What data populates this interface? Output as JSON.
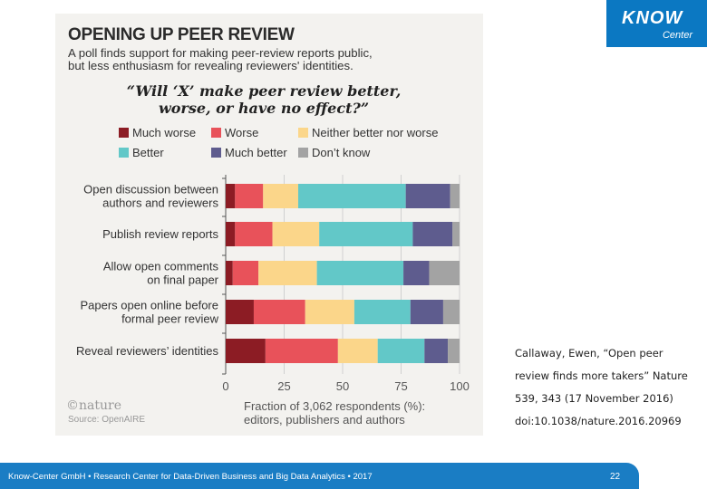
{
  "figure": {
    "title": "OPENING UP PEER REVIEW",
    "subtitle_line1": "A poll finds support for making peer-review reports public,",
    "subtitle_line2": "but less enthusiasm for revealing reviewers' identities.",
    "question_line1": "“Will ‘X’ make peer review better,",
    "question_line2": "worse, or have no effect?”",
    "watermark": "©nature",
    "source": "Source: OpenAIRE"
  },
  "chart_data": {
    "type": "bar",
    "orientation": "horizontal",
    "stacked": true,
    "categories": [
      [
        "Open discussion between",
        "authors and reviewers"
      ],
      [
        "Publish review reports"
      ],
      [
        "Allow open comments",
        "on final paper"
      ],
      [
        "Papers open online before",
        "formal peer review"
      ],
      [
        "Reveal reviewers’ identities"
      ]
    ],
    "series": [
      {
        "name": "Much worse",
        "color": "#8c1c24",
        "values": [
          4,
          4,
          3,
          12,
          17
        ]
      },
      {
        "name": "Worse",
        "color": "#e8525a",
        "values": [
          12,
          16,
          11,
          22,
          31
        ]
      },
      {
        "name": "Neither better nor worse",
        "color": "#fbd68a",
        "values": [
          15,
          20,
          25,
          21,
          17
        ]
      },
      {
        "name": "Better",
        "color": "#62c8c8",
        "values": [
          46,
          40,
          37,
          24,
          20
        ]
      },
      {
        "name": "Much better",
        "color": "#5e5c8e",
        "values": [
          19,
          17,
          11,
          14,
          10
        ]
      },
      {
        "name": "Don’t know",
        "color": "#a3a3a3",
        "values": [
          4,
          3,
          13,
          7,
          5
        ]
      }
    ],
    "xticks": [
      0,
      25,
      50,
      75,
      100
    ],
    "xlim": [
      0,
      100
    ],
    "xlabel_line1": "Fraction of 3,062 respondents (%):",
    "xlabel_line2": "editors, publishers and authors",
    "legend_position": "top"
  },
  "logo": {
    "name": "KNOW",
    "sub": "Center"
  },
  "citation": [
    "Callaway, Ewen, “Open peer",
    "review finds more takers” Nature",
    "539, 343 (17 November 2016)",
    "doi:10.1038/nature.2016.20969"
  ],
  "footer": {
    "text": "Know-Center GmbH • Research Center for Data-Driven Business and Big Data Analytics • 2017",
    "page": "22"
  }
}
